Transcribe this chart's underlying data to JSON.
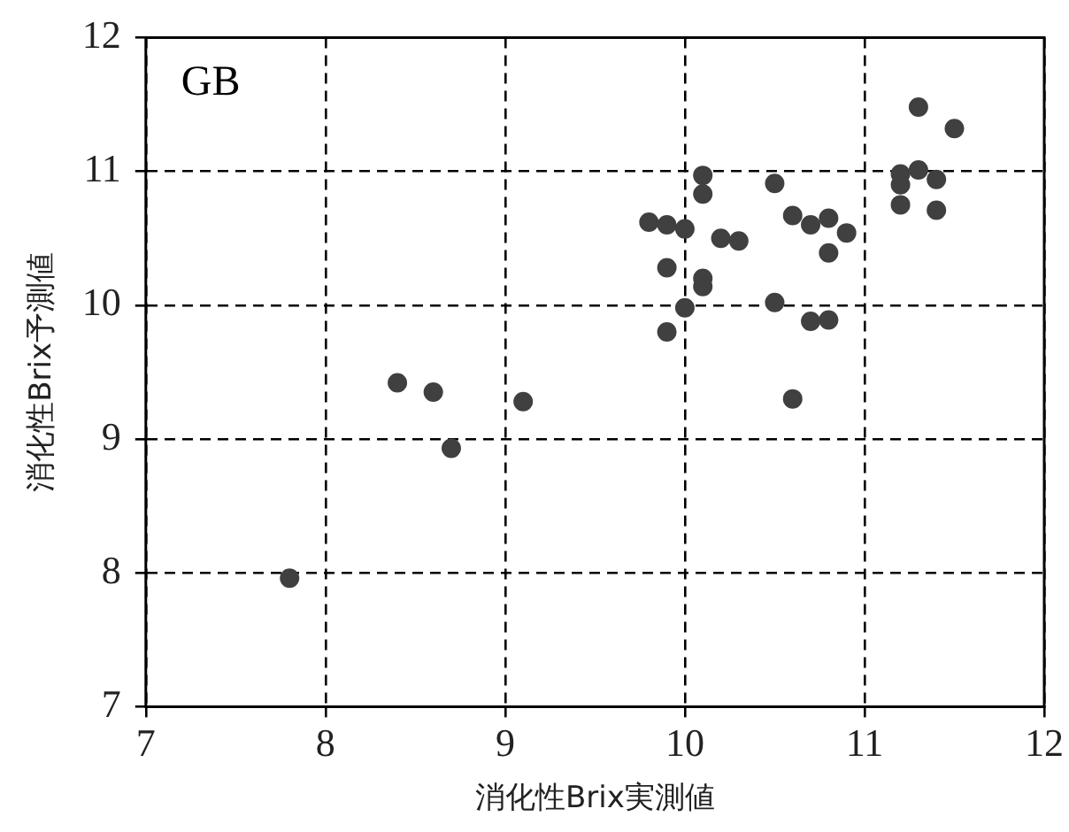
{
  "chart_data": {
    "type": "scatter",
    "xlabel": "消化性Brix実測値",
    "ylabel": "消化性Brix予測値",
    "annotations": [
      "GB"
    ],
    "xlim": [
      7,
      12
    ],
    "xticks": [
      7,
      8,
      9,
      10,
      11,
      12
    ],
    "ylim": [
      7,
      12
    ],
    "yticks": [
      7,
      8,
      9,
      10,
      11,
      12
    ],
    "grid": true,
    "marker": "circle",
    "legend": false,
    "series": [
      {
        "color": "#404040",
        "x": [
          7.8,
          8.4,
          8.6,
          8.7,
          9.1,
          9.8,
          9.9,
          10.0,
          9.9,
          9.9,
          10.0,
          10.1,
          10.1,
          10.1,
          10.1,
          10.2,
          10.3,
          10.5,
          10.6,
          10.7,
          10.8,
          10.9,
          10.8,
          10.5,
          10.7,
          10.8,
          10.6,
          11.2,
          11.2,
          11.2,
          11.3,
          11.4,
          11.4,
          11.3,
          11.5
        ],
        "values": [
          7.96,
          9.42,
          9.35,
          8.93,
          9.28,
          10.62,
          10.6,
          10.57,
          10.28,
          9.8,
          9.98,
          10.2,
          10.14,
          10.97,
          10.83,
          10.5,
          10.48,
          10.91,
          10.67,
          10.6,
          10.65,
          10.54,
          10.39,
          10.02,
          9.88,
          9.89,
          9.3,
          10.98,
          10.9,
          10.75,
          11.01,
          10.94,
          10.71,
          11.48,
          11.32
        ]
      }
    ]
  }
}
